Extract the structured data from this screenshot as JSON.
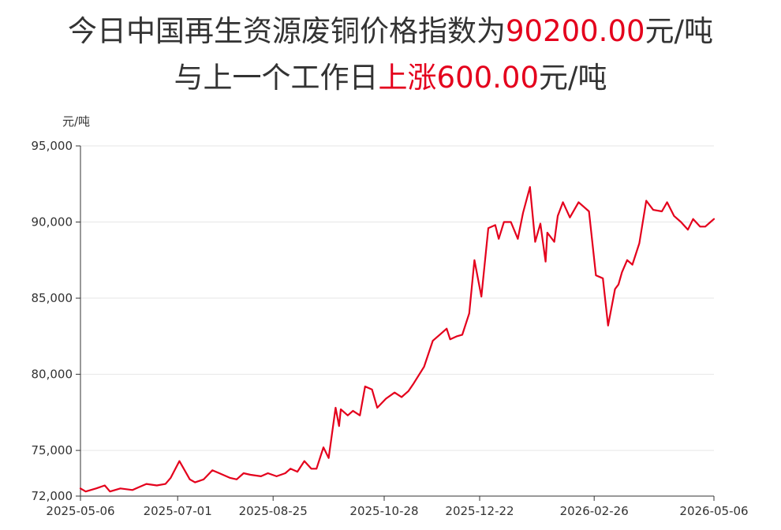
{
  "title": {
    "line1_prefix": "今日中国再生资源废铜价格指数为",
    "line1_value": "90200.00",
    "line1_suffix": "元/吨",
    "line2_prefix": "与上一个工作日",
    "line2_change": "上涨600.00",
    "line2_suffix": "元/吨"
  },
  "colors": {
    "line": "#e4001c",
    "highlight": "#e4001c",
    "grid": "#e6e6e6",
    "axis": "#333333"
  },
  "chart_data": {
    "type": "line",
    "ylabel": "元/吨",
    "ylim": [
      72000,
      95000
    ],
    "yticks": [
      72000,
      75000,
      80000,
      85000,
      90000,
      95000
    ],
    "ytick_labels": [
      "72,000",
      "75,000",
      "80,000",
      "85,000",
      "90,000",
      "95,000"
    ],
    "xlim": [
      "2025-05-06",
      "2026-05-06"
    ],
    "xticks": [
      "2025-05-06",
      "2025-07-01",
      "2025-08-25",
      "2025-10-28",
      "2025-12-22",
      "2026-02-26",
      "2026-05-06"
    ],
    "grid": true,
    "series": [
      {
        "name": "",
        "x": [
          "2025-05-06",
          "2025-05-09",
          "2025-05-15",
          "2025-05-20",
          "2025-05-23",
          "2025-05-29",
          "2025-06-05",
          "2025-06-09",
          "2025-06-13",
          "2025-06-19",
          "2025-06-24",
          "2025-06-27",
          "2025-07-02",
          "2025-07-04",
          "2025-07-08",
          "2025-07-11",
          "2025-07-16",
          "2025-07-21",
          "2025-07-25",
          "2025-07-31",
          "2025-08-04",
          "2025-08-08",
          "2025-08-12",
          "2025-08-18",
          "2025-08-22",
          "2025-08-27",
          "2025-09-01",
          "2025-09-04",
          "2025-09-08",
          "2025-09-12",
          "2025-09-16",
          "2025-09-19",
          "2025-09-23",
          "2025-09-26",
          "2025-09-30",
          "2025-10-02",
          "2025-10-03",
          "2025-10-07",
          "2025-10-10",
          "2025-10-14",
          "2025-10-17",
          "2025-10-21",
          "2025-10-24",
          "2025-10-29",
          "2025-11-03",
          "2025-11-07",
          "2025-11-11",
          "2025-11-14",
          "2025-11-20",
          "2025-11-25",
          "2025-11-29",
          "2025-12-03",
          "2025-12-05",
          "2025-12-09",
          "2025-12-12",
          "2025-12-16",
          "2025-12-19",
          "2025-12-23",
          "2025-12-27",
          "2025-12-31",
          "2026-01-02",
          "2026-01-05",
          "2026-01-09",
          "2026-01-13",
          "2026-01-16",
          "2026-01-20",
          "2026-01-23",
          "2026-01-26",
          "2026-01-29",
          "2026-01-30",
          "2026-02-03",
          "2026-02-05",
          "2026-02-08",
          "2026-02-12",
          "2026-02-17",
          "2026-02-23",
          "2026-02-27",
          "2026-03-03",
          "2026-03-06",
          "2026-03-10",
          "2026-03-12",
          "2026-03-14",
          "2026-03-17",
          "2026-03-20",
          "2026-03-24",
          "2026-03-28",
          "2026-04-01",
          "2026-04-06",
          "2026-04-09",
          "2026-04-13",
          "2026-04-17",
          "2026-04-21",
          "2026-04-24",
          "2026-04-28",
          "2026-05-01",
          "2026-05-04",
          "2026-05-06"
        ],
        "values": [
          72500,
          72300,
          72500,
          72700,
          72300,
          72500,
          72400,
          72600,
          72800,
          72700,
          72800,
          73200,
          74300,
          73900,
          73100,
          72900,
          73100,
          73700,
          73500,
          73200,
          73100,
          73500,
          73400,
          73300,
          73500,
          73300,
          73500,
          73800,
          73600,
          74300,
          73800,
          73800,
          75200,
          74500,
          77800,
          76600,
          77700,
          77300,
          77600,
          77300,
          79200,
          79000,
          77800,
          78400,
          78800,
          78500,
          78900,
          79400,
          80500,
          82200,
          82600,
          83000,
          82300,
          82500,
          82600,
          84000,
          87500,
          85100,
          89600,
          89800,
          88900,
          90000,
          90000,
          88900,
          90600,
          92300,
          88700,
          89900,
          87400,
          89300,
          88700,
          90400,
          91300,
          90300,
          91300,
          90700,
          86500,
          86300,
          83200,
          85600,
          85900,
          86700,
          87500,
          87200,
          88600,
          91400,
          90800,
          90700,
          91300,
          90400,
          90000,
          89500,
          90200,
          89700,
          89700,
          90000,
          90200
        ]
      }
    ]
  }
}
